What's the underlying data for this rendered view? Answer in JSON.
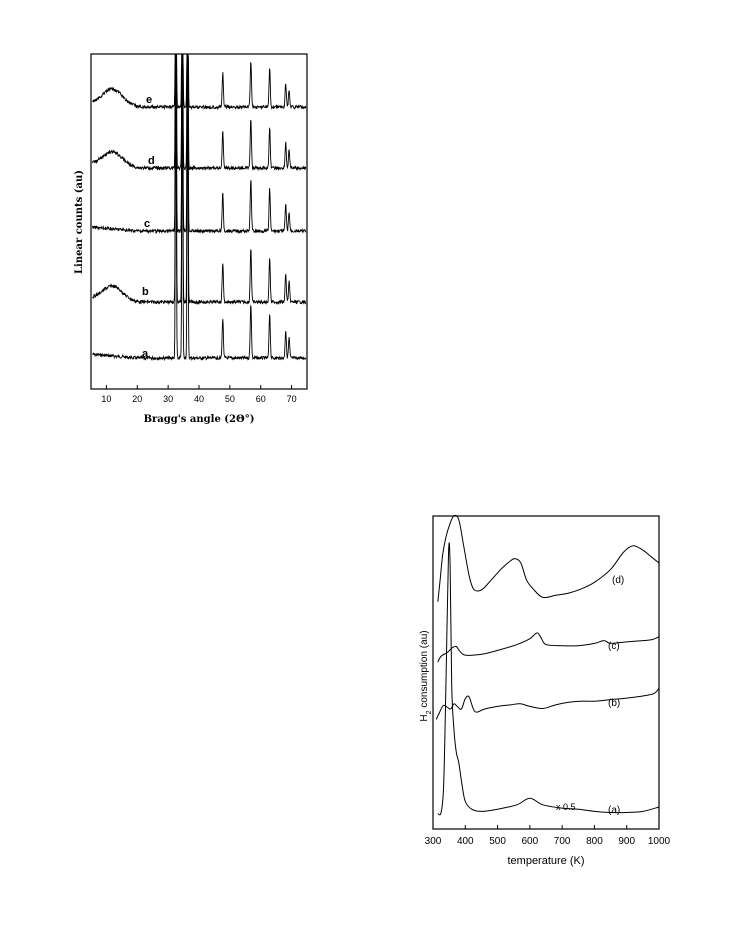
{
  "chart_data": [
    {
      "type": "line",
      "xlabel": "Bragg's angle (2Θ°)",
      "ylabel": "Linear counts (au)",
      "xlim": [
        5,
        75
      ],
      "x_ticks": [
        "10",
        "20",
        "30",
        "40",
        "50",
        "60",
        "70"
      ],
      "y_ticks": "none",
      "grid": false,
      "series": [
        {
          "name": "a",
          "peaks": [
            32.5,
            34.6,
            36.3,
            47.7,
            56.8,
            62.9,
            68.1,
            69.2
          ],
          "broad_hump": null
        },
        {
          "name": "b",
          "peaks": [
            32.5,
            34.6,
            36.3,
            47.7,
            56.8,
            62.9,
            68.1,
            69.2
          ],
          "broad_hump": 12
        },
        {
          "name": "c",
          "peaks": [
            32.5,
            34.6,
            36.3,
            47.7,
            56.8,
            62.9,
            68.1,
            69.2
          ],
          "broad_hump": null
        },
        {
          "name": "d",
          "peaks": [
            32.5,
            34.6,
            36.3,
            47.7,
            56.8,
            62.9,
            68.1,
            69.2
          ],
          "broad_hump": 12
        },
        {
          "name": "e",
          "peaks": [
            32.5,
            34.6,
            36.3,
            47.7,
            56.8,
            62.9,
            68.1,
            69.2
          ],
          "broad_hump": 12
        }
      ]
    },
    {
      "type": "line",
      "xlabel": "temperature (K)",
      "ylabel": "H2 consumption (au)",
      "xlim": [
        300,
        1000
      ],
      "x_ticks": [
        "300",
        "400",
        "500",
        "600",
        "700",
        "800",
        "900",
        "1000"
      ],
      "y_ticks": "none",
      "grid": false,
      "annotation": "x 0.5",
      "series": [
        {
          "name": "(a)",
          "points": [
            [
              315,
              0.4
            ],
            [
              325,
              0.5
            ],
            [
              333,
              3
            ],
            [
              340,
              12
            ],
            [
              348,
              24
            ],
            [
              353,
              23
            ],
            [
              358,
              12
            ],
            [
              365,
              8
            ],
            [
              372,
              6
            ],
            [
              380,
              5
            ],
            [
              390,
              3
            ],
            [
              400,
              1.5
            ],
            [
              420,
              0.8
            ],
            [
              450,
              0.6
            ],
            [
              500,
              0.8
            ],
            [
              560,
              1.2
            ],
            [
              600,
              1.8
            ],
            [
              640,
              1.2
            ],
            [
              700,
              0.9
            ],
            [
              750,
              0.8
            ],
            [
              800,
              0.6
            ],
            [
              850,
              0.5
            ],
            [
              900,
              0.5
            ],
            [
              950,
              0.6
            ],
            [
              1000,
              1
            ]
          ]
        },
        {
          "name": "(b)",
          "points": [
            [
              310,
              0.5
            ],
            [
              320,
              1.8
            ],
            [
              332,
              3.2
            ],
            [
              345,
              2.8
            ],
            [
              355,
              2.5
            ],
            [
              365,
              3.5
            ],
            [
              375,
              3.0
            ],
            [
              388,
              2.5
            ],
            [
              400,
              4.5
            ],
            [
              412,
              4.8
            ],
            [
              430,
              2.0
            ],
            [
              460,
              2.5
            ],
            [
              500,
              3.0
            ],
            [
              540,
              3.3
            ],
            [
              570,
              3.5
            ],
            [
              600,
              3.0
            ],
            [
              640,
              2.6
            ],
            [
              680,
              3.3
            ],
            [
              720,
              3.8
            ],
            [
              760,
              4.0
            ],
            [
              800,
              4.0
            ],
            [
              850,
              4.3
            ],
            [
              900,
              4.6
            ],
            [
              950,
              5.0
            ],
            [
              985,
              5.5
            ],
            [
              1000,
              6.5
            ]
          ]
        },
        {
          "name": "(c)",
          "points": [
            [
              315,
              1
            ],
            [
              325,
              2.5
            ],
            [
              345,
              3.5
            ],
            [
              360,
              4.7
            ],
            [
              372,
              5
            ],
            [
              383,
              3.8
            ],
            [
              400,
              2.8
            ],
            [
              450,
              3
            ],
            [
              500,
              4
            ],
            [
              560,
              5.5
            ],
            [
              600,
              7
            ],
            [
              622,
              8.5
            ],
            [
              635,
              7.2
            ],
            [
              650,
              5.5
            ],
            [
              700,
              5.2
            ],
            [
              750,
              5.2
            ],
            [
              800,
              5.8
            ],
            [
              830,
              6.5
            ],
            [
              850,
              5.8
            ],
            [
              900,
              6.2
            ],
            [
              950,
              6.5
            ],
            [
              980,
              6.8
            ],
            [
              1000,
              7.5
            ]
          ]
        },
        {
          "name": "(d)",
          "points": [
            [
              315,
              1
            ],
            [
              322,
              6
            ],
            [
              330,
              12
            ],
            [
              340,
              16
            ],
            [
              352,
              19
            ],
            [
              365,
              21
            ],
            [
              380,
              20
            ],
            [
              395,
              14
            ],
            [
              412,
              7
            ],
            [
              425,
              4
            ],
            [
              440,
              3.5
            ],
            [
              455,
              4
            ],
            [
              480,
              6
            ],
            [
              510,
              8.5
            ],
            [
              540,
              10.5
            ],
            [
              555,
              11
            ],
            [
              572,
              10
            ],
            [
              590,
              6
            ],
            [
              610,
              4
            ],
            [
              640,
              2
            ],
            [
              680,
              2.5
            ],
            [
              720,
              3
            ],
            [
              760,
              4
            ],
            [
              800,
              5.5
            ],
            [
              850,
              8.5
            ],
            [
              890,
              12.5
            ],
            [
              920,
              14
            ],
            [
              950,
              13
            ],
            [
              975,
              11.5
            ],
            [
              1000,
              10
            ]
          ]
        }
      ]
    }
  ],
  "xrd": {
    "xlabel": "Bragg's angle (2Θ°)",
    "ylabel": "Linear counts (au)",
    "labels": [
      "a",
      "b",
      "c",
      "d",
      "e"
    ]
  },
  "tpr": {
    "xlabel": "temperature (K)",
    "ylabel_main": "H",
    "ylabel_sub": "2",
    "ylabel_rest": " consumption (au)",
    "labels": [
      "(a)",
      "(b)",
      "(c)",
      "(d)"
    ],
    "annotation": "x 0.5"
  }
}
